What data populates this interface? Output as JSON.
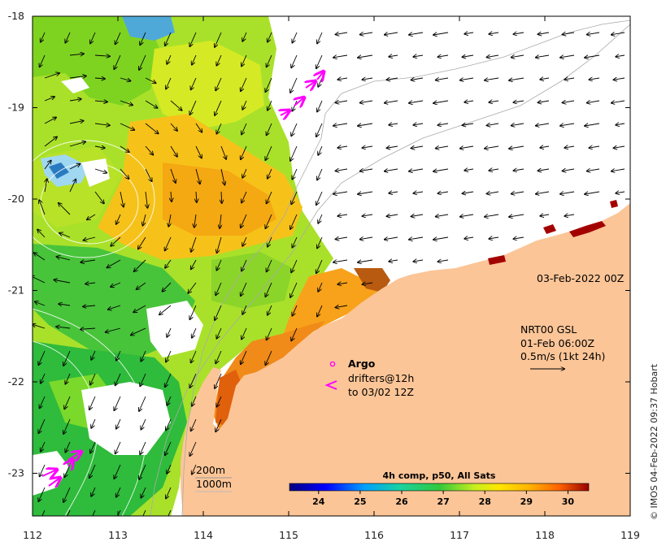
{
  "map": {
    "lon_ticks": [
      "112",
      "113",
      "114",
      "115",
      "116",
      "117",
      "118",
      "119"
    ],
    "lat_ticks": [
      "-18",
      "-19",
      "-20",
      "-21",
      "-22",
      "-23"
    ],
    "timestamp": "03-Feb-2022 00Z",
    "current_info": {
      "line1": "NRT00 GSL",
      "line2": "01-Feb 06:00Z",
      "line3": "0.5m/s (1kt 24h)"
    },
    "legend": {
      "argo": "Argo",
      "drifters_line1": "drifters@12h",
      "drifters_line2": "to 03/02 12Z"
    },
    "isobaths": {
      "a": "200m",
      "b": "1000m"
    },
    "colorbar": {
      "title": "4h comp, p50, All Sats",
      "ticks": [
        "24",
        "25",
        "26",
        "27",
        "28",
        "29",
        "30"
      ],
      "range": [
        23.3,
        30.5
      ]
    },
    "credit": "© IMOS 04-Feb-2022 09:37 Hobart",
    "colors": {
      "land": "#fcc597",
      "drifter": "#ff00ff",
      "argo": "#ff00ff"
    }
  }
}
